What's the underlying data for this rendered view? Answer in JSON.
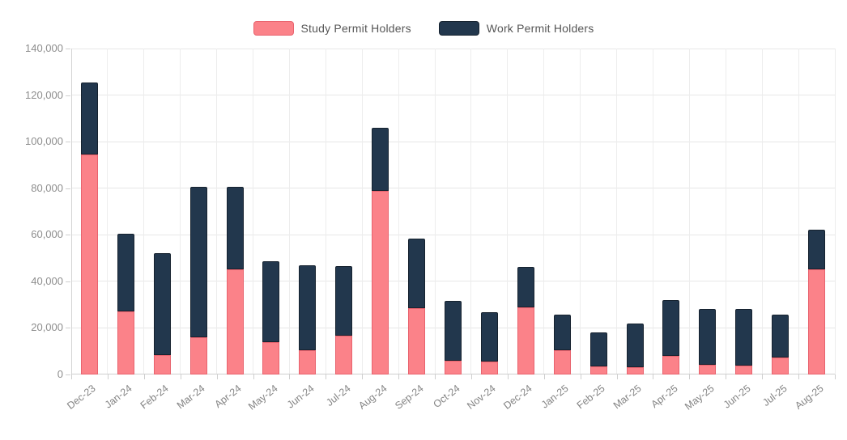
{
  "chart_data": {
    "type": "bar",
    "stacked": true,
    "title": "",
    "legend_position": "top",
    "grid": true,
    "ylim": [
      0,
      140000
    ],
    "y_ticks": {
      "labels": [
        "140,000",
        "120,000",
        "100,000",
        "80,000",
        "60,000",
        "40,000",
        "20,000",
        "0"
      ],
      "values": [
        140000,
        120000,
        100000,
        80000,
        60000,
        40000,
        20000,
        0
      ]
    },
    "categories": [
      "Dec-23",
      "Jan-24",
      "Feb-24",
      "Mar-24",
      "Apr-24",
      "May-24",
      "Jun-24",
      "Jul-24",
      "Aug-24",
      "Sep-24",
      "Oct-24",
      "Nov-24",
      "Dec-24",
      "Jan-25",
      "Feb-25",
      "Mar-25",
      "Apr-25",
      "May-25",
      "Jun-25",
      "Jul-25",
      "Aug-25"
    ],
    "series": [
      {
        "name": "Study Permit Holders",
        "color": "#FB8289",
        "border_color": "#E8636E",
        "values": [
          94500,
          27000,
          8500,
          16000,
          45000,
          13800,
          10500,
          16800,
          79000,
          28500,
          5800,
          5400,
          28900,
          10300,
          3400,
          3000,
          8000,
          4200,
          3800,
          7400,
          45000
        ]
      },
      {
        "name": "Work Permit Holders",
        "color": "#22374D",
        "border_color": "#16222F",
        "values": [
          31000,
          33500,
          43500,
          64500,
          35500,
          35000,
          36500,
          29700,
          26800,
          30000,
          25900,
          21500,
          17300,
          15500,
          14800,
          18800,
          24000,
          23800,
          24200,
          18400,
          17300
        ]
      }
    ]
  }
}
